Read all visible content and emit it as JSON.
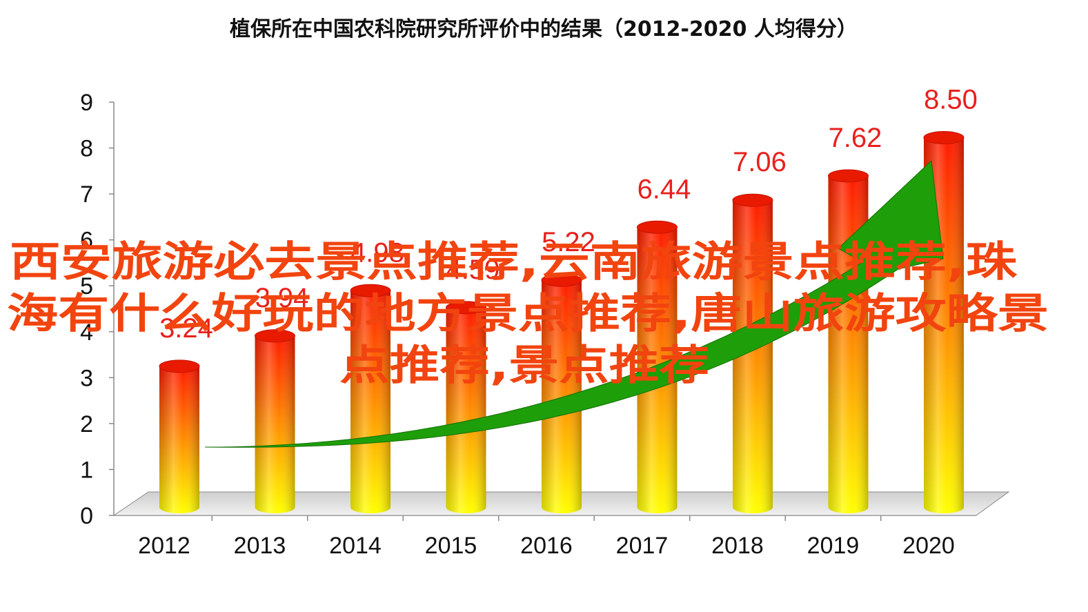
{
  "chart_data": {
    "type": "bar",
    "title": "植保所在中国农科院研究所评价中的结果（2012-2020  人均得分）",
    "categories": [
      "2012",
      "2013",
      "2014",
      "2015",
      "2016",
      "2017",
      "2018",
      "2019",
      "2020"
    ],
    "values": [
      3.24,
      3.94,
      4.98,
      4.59,
      5.22,
      6.44,
      7.06,
      7.62,
      8.5
    ],
    "value_labels": [
      "3.24",
      "3.94",
      "4.98",
      "4.59",
      "5.22",
      "6.44",
      "7.06",
      "7.62",
      "8.50"
    ],
    "yticks": [
      "0",
      "1",
      "2",
      "3",
      "4",
      "5",
      "6",
      "7",
      "8",
      "9"
    ],
    "ylim": [
      0,
      9
    ],
    "xlabel": "",
    "ylabel": "",
    "grid": false,
    "legend": "none",
    "style": "3d-cylinder",
    "trend_arrow": true,
    "colors": {
      "bar_top": "#ff1a00",
      "bar_bottom": "#ffff00",
      "label": "#e8201c",
      "arrow": "#1e9e08",
      "floor": "#d9d9d9"
    }
  },
  "overlay": {
    "lines": [
      "西安旅游必去景点推荐,云南旅游景点推荐,珠",
      "海有什么好玩的地方景点推荐,唐山旅游攻略景",
      "点推荐,景点推荐"
    ],
    "color": "#f2440f"
  }
}
